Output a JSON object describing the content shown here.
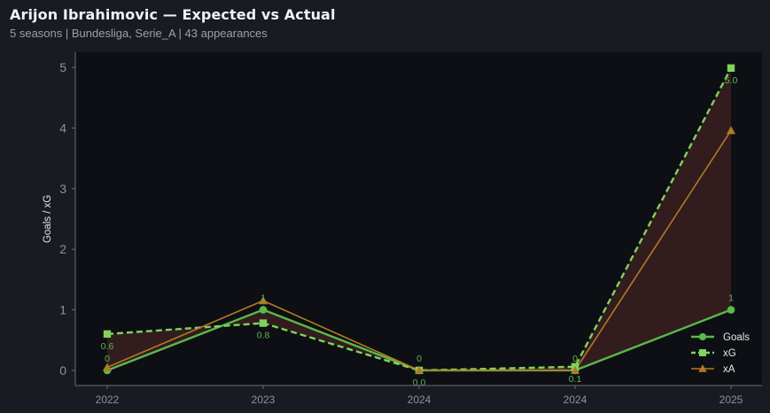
{
  "header": {
    "title": "Arijon Ibrahimovic — Expected vs Actual",
    "subtitle": "5 seasons | Bundesliga, Serie_A | 43 appearances"
  },
  "colors": {
    "background": "#181b22",
    "plot_background": "#0d0f14",
    "goals": "#5ab94a",
    "xg": "#7fd35e",
    "xa": "#b07b24",
    "fill_between": "#3a1f20",
    "axis": "#6a6e75"
  },
  "chart_data": {
    "type": "line",
    "categories": [
      "2022",
      "2023",
      "2024",
      "2024",
      "2025"
    ],
    "ylabel": "Goals / xG",
    "xlabel": "",
    "ylim": [
      -0.25,
      5.25
    ],
    "yticks": [
      0,
      1,
      2,
      3,
      4,
      5
    ],
    "grid": false,
    "legend_position": "bottom-right",
    "series": [
      {
        "name": "Goals",
        "values": [
          0,
          1,
          0,
          0,
          1
        ],
        "marker": "circle",
        "linestyle": "solid",
        "labels": [
          "0",
          "1",
          "0",
          "0",
          "1"
        ]
      },
      {
        "name": "xG",
        "values": [
          0.6,
          0.78,
          0.0,
          0.06,
          4.99
        ],
        "marker": "square",
        "linestyle": "dashed",
        "labels": [
          "0.6",
          "0.8",
          "0.0",
          "0.1",
          "5.0"
        ]
      },
      {
        "name": "xA",
        "values": [
          0.05,
          1.15,
          0.0,
          0.0,
          3.96
        ],
        "marker": "triangle",
        "linestyle": "solid"
      }
    ]
  }
}
